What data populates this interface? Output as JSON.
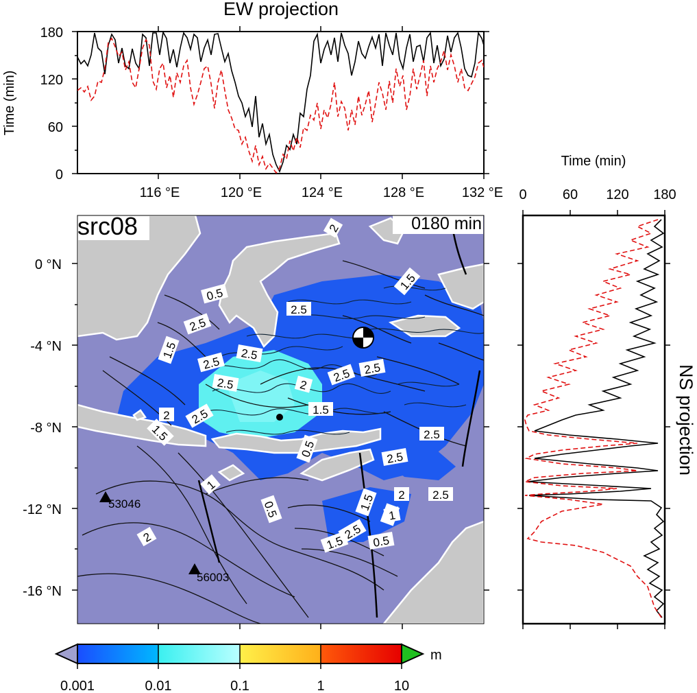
{
  "ew_panel": {
    "title": "EW projection",
    "ylabel": "Time (min)",
    "y_ticks": [
      "0",
      "60",
      "120",
      "180"
    ],
    "x_ticks": [
      "116 °E",
      "120 °E",
      "124 °E",
      "128 °E",
      "132 °E"
    ]
  },
  "ns_panel": {
    "title": "NS projection",
    "xlabel": "Time (min)",
    "x_ticks": [
      "0",
      "60",
      "120",
      "180"
    ]
  },
  "map": {
    "source_label": "src08",
    "time_label": "0180 min",
    "lat_ticks": [
      "0 °N",
      "-4 °N",
      "-8 °N",
      "-12 °N",
      "-16 °N"
    ],
    "stations": [
      {
        "id": "53046",
        "lon": 113.3,
        "lat": -11.5
      },
      {
        "id": "56003",
        "lon": 118.9,
        "lat": -15.1
      }
    ],
    "contour_labels": [
      "2",
      "2.5",
      "0.5",
      "1.5",
      "1",
      "2.5",
      "2.5",
      "1.5",
      "2.5",
      "2.5",
      "2",
      "2.5",
      "1.5",
      "2.5",
      "0.5",
      "1.5",
      "2.5",
      "2",
      "2.5",
      "1",
      "0.5",
      "1.5",
      "2",
      "1",
      "2.5",
      "0.5",
      "2",
      "2.5",
      "2.5",
      "1.5"
    ],
    "colors": {
      "background": "#8a8ac8",
      "land": "#c8c8c8",
      "wave_blue": "#1e5af0",
      "wave_cyan": "#5ff0f0"
    }
  },
  "colorbar": {
    "unit": "m",
    "ticks": [
      "0.001",
      "0.01",
      "0.1",
      "1",
      "10"
    ],
    "colors": [
      "#1a4dff",
      "#00b8ff",
      "#3af0f0",
      "#b8ffff",
      "#fff04a",
      "#ffb01a",
      "#ff5a0a",
      "#e60000",
      "#a0a0d0",
      "#20c020"
    ]
  },
  "chart_data": [
    {
      "type": "line",
      "title": "EW projection",
      "ylabel": "Time (min)",
      "x_unit": "°E",
      "xlim": [
        111.9,
        132.3
      ],
      "ylim": [
        0,
        180
      ],
      "series": [
        {
          "color": "#000000",
          "style": "solid",
          "x": [
            112,
            113,
            114,
            115,
            116,
            117,
            118,
            119,
            120,
            120.5,
            121,
            121.5,
            122,
            122.5,
            123,
            123.5,
            124,
            125,
            126,
            127,
            128,
            129,
            130,
            131,
            132
          ],
          "y": [
            150,
            140,
            175,
            140,
            170,
            160,
            180,
            165,
            120,
            90,
            60,
            30,
            5,
            25,
            70,
            110,
            140,
            160,
            170,
            150,
            165,
            175,
            170,
            140,
            160
          ]
        },
        {
          "color": "#e01010",
          "style": "dashed",
          "x": [
            112,
            113,
            114,
            115,
            116,
            117,
            118,
            119,
            120,
            120.5,
            121,
            121.5,
            122,
            122.5,
            123,
            123.5,
            124,
            125,
            126,
            127,
            128,
            129,
            130,
            131,
            132
          ],
          "y": [
            100,
            110,
            160,
            110,
            150,
            120,
            150,
            120,
            80,
            50,
            30,
            15,
            2,
            12,
            40,
            70,
            90,
            110,
            130,
            110,
            130,
            150,
            150,
            110,
            120
          ]
        }
      ]
    },
    {
      "type": "line",
      "title": "NS projection",
      "xlabel": "Time (min)",
      "y_unit": "°N",
      "xlim": [
        0,
        180
      ],
      "ylim": [
        -17.6,
        2.4
      ],
      "series": [
        {
          "color": "#000000",
          "style": "solid",
          "lat": [
            2,
            0,
            -2,
            -4,
            -5,
            -6,
            -7,
            -7.5,
            -8,
            -8.5,
            -9,
            -9.5,
            -10,
            -10.5,
            -11,
            -11.5,
            -12,
            -13,
            -14,
            -15,
            -16,
            -17
          ],
          "t": [
            170,
            150,
            160,
            140,
            120,
            110,
            90,
            40,
            20,
            30,
            140,
            50,
            120,
            30,
            160,
            40,
            150,
            165,
            160,
            170,
            165,
            170
          ]
        },
        {
          "color": "#e01010",
          "style": "dashed",
          "lat": [
            2,
            0,
            -2,
            -4,
            -5,
            -6,
            -7,
            -7.5,
            -8,
            -8.5,
            -9,
            -9.5,
            -10,
            -10.5,
            -11,
            -11.5,
            -12,
            -13,
            -14,
            -15,
            -16,
            -17
          ],
          "t": [
            160,
            130,
            140,
            100,
            80,
            50,
            30,
            5,
            10,
            20,
            100,
            30,
            90,
            15,
            100,
            20,
            130,
            30,
            110,
            150,
            150,
            170
          ]
        }
      ]
    }
  ]
}
